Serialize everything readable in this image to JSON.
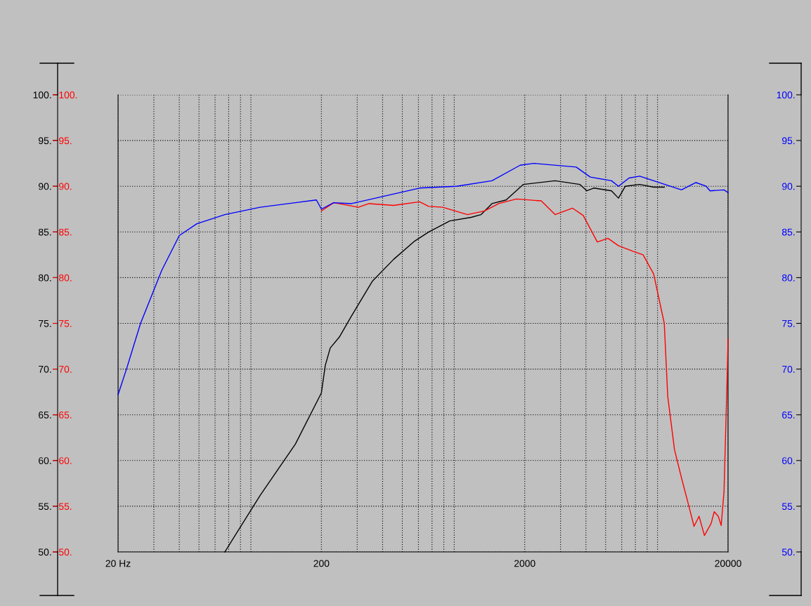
{
  "chart_data": {
    "type": "line",
    "xlim": [
      20,
      20000
    ],
    "log": "x",
    "xticks": [
      {
        "value": 20,
        "label": "20 Hz"
      },
      {
        "value": 30,
        "label": null
      },
      {
        "value": 40,
        "label": null
      },
      {
        "value": 50,
        "label": null
      },
      {
        "value": 60,
        "label": null
      },
      {
        "value": 70,
        "label": null
      },
      {
        "value": 80,
        "label": null
      },
      {
        "value": 90,
        "label": null
      },
      200,
      {
        "value": 300,
        "label": null
      },
      {
        "value": 400,
        "label": null
      },
      {
        "value": 500,
        "label": null
      },
      {
        "value": 600,
        "label": null
      },
      {
        "value": 700,
        "label": null
      },
      {
        "value": 800,
        "label": null
      },
      {
        "value": 900,
        "label": null
      },
      2000,
      {
        "value": 3000,
        "label": null
      },
      {
        "value": 4000,
        "label": null
      },
      {
        "value": 5000,
        "label": null
      },
      {
        "value": 6000,
        "label": null
      },
      {
        "value": 7000,
        "label": null
      },
      {
        "value": 8000,
        "label": null
      },
      {
        "value": 9000,
        "label": null
      },
      20000
    ],
    "ylim": [
      50,
      100
    ],
    "yticks": [
      {
        "value": 50,
        "label": "50."
      },
      {
        "value": 55,
        "label": "55."
      },
      {
        "value": 60,
        "label": "60."
      },
      {
        "value": 65,
        "label": "65."
      },
      {
        "value": 70,
        "label": "70."
      },
      {
        "value": 75,
        "label": "75."
      },
      {
        "value": 80,
        "label": "80."
      },
      {
        "value": 85,
        "label": "85."
      },
      {
        "value": 90,
        "label": "90."
      },
      {
        "value": 95,
        "label": "95."
      },
      {
        "value": 100,
        "label": "100."
      }
    ],
    "y2lim": [
      50,
      100
    ],
    "y2ticks": [
      {
        "value": 50,
        "label": "50."
      },
      {
        "value": 55,
        "label": "55."
      },
      {
        "value": 60,
        "label": "60."
      },
      {
        "value": 65,
        "label": "65."
      },
      {
        "value": 70,
        "label": "70."
      },
      {
        "value": 75,
        "label": "75."
      },
      {
        "value": 80,
        "label": "80."
      },
      {
        "value": 85,
        "label": "85."
      },
      {
        "value": 90,
        "label": "90."
      },
      {
        "value": 95,
        "label": "95."
      },
      {
        "value": 100,
        "label": "100."
      }
    ],
    "y3lim": [
      50,
      100
    ],
    "y3ticks": [
      {
        "value": 50,
        "label": "50."
      },
      {
        "value": 55,
        "label": "55."
      },
      {
        "value": 60,
        "label": "60."
      },
      {
        "value": 65,
        "label": "65."
      },
      {
        "value": 70,
        "label": "70."
      },
      {
        "value": 75,
        "label": "75."
      },
      {
        "value": 80,
        "label": "80."
      },
      {
        "value": 85,
        "label": "85."
      },
      {
        "value": 90,
        "label": "90."
      },
      {
        "value": 95,
        "label": "95."
      },
      {
        "value": 100,
        "label": "100."
      }
    ],
    "grid": true,
    "marker": "none",
    "line_style": "solid",
    "series": [
      {
        "color": "#0000ff",
        "axis": "y3",
        "x": [
          20,
          22,
          25.8,
          32.8,
          40,
          48.8,
          67,
          100,
          149,
          189,
          200,
          230,
          281,
          386,
          608,
          926,
          1380,
          1900,
          2220,
          3580,
          4200,
          5340,
          5780,
          6520,
          7350,
          8610,
          11800,
          13900,
          15600,
          16300,
          19100,
          20000
        ],
        "values": [
          67.2,
          70.0,
          75.0,
          80.8,
          84.6,
          85.9,
          86.9,
          87.7,
          88.2,
          88.5,
          87.5,
          88.2,
          88.1,
          88.8,
          89.8,
          90.0,
          90.6,
          92.3,
          92.5,
          92.1,
          91.0,
          90.6,
          90.0,
          90.9,
          91.1,
          90.6,
          89.6,
          90.4,
          90.0,
          89.5,
          89.6,
          89.3
        ]
      },
      {
        "color": "#ff0000",
        "axis": "y2",
        "x": [
          200,
          230,
          304,
          343,
          453,
          608,
          674,
          790,
          1045,
          1270,
          1490,
          1820,
          2410,
          2820,
          3440,
          3880,
          4550,
          5130,
          5780,
          6780,
          7640,
          8610,
          9710,
          10100,
          10900,
          11800,
          12800,
          13600,
          14400,
          15300,
          16500,
          17100,
          17900,
          18500,
          19100,
          19700,
          20000
        ],
        "values": [
          87.3,
          88.2,
          87.7,
          88.1,
          87.9,
          88.3,
          87.8,
          87.7,
          86.9,
          87.3,
          88.1,
          88.6,
          88.4,
          86.9,
          87.6,
          86.8,
          83.9,
          84.3,
          83.5,
          82.9,
          82.5,
          80.4,
          75.0,
          67.0,
          61.2,
          58.1,
          55.1,
          52.8,
          53.9,
          51.8,
          53.1,
          54.4,
          53.9,
          52.9,
          56.6,
          67.4,
          73.3
        ]
      },
      {
        "color": "#000000",
        "axis": "y",
        "x": [
          67,
          100,
          149,
          200,
          209,
          221,
          245,
          281,
          356,
          453,
          575,
          674,
          856,
          1090,
          1220,
          1380,
          1620,
          1970,
          2820,
          3730,
          4040,
          4370,
          5340,
          5780,
          6250,
          7350,
          8610,
          9710
        ],
        "values": [
          50.0,
          56.2,
          61.8,
          67.4,
          70.4,
          72.3,
          73.5,
          75.8,
          79.6,
          82.0,
          84.0,
          85.0,
          86.2,
          86.6,
          86.9,
          88.1,
          88.5,
          90.2,
          90.6,
          90.2,
          89.5,
          89.8,
          89.5,
          88.7,
          90.0,
          90.2,
          89.9,
          89.9
        ]
      }
    ]
  }
}
